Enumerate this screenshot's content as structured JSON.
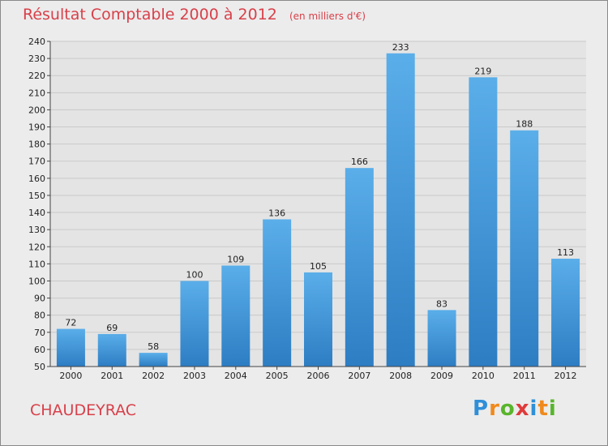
{
  "header": {
    "title": "Résultat Comptable 2000 à 2012",
    "units": "(en milliers d'€)"
  },
  "footer": {
    "commune": "CHAUDEYRAC",
    "brand_letters": [
      "P",
      "r",
      "o",
      "x",
      "i",
      "t",
      "i"
    ],
    "brand_colors": [
      "#2f8fd8",
      "#f08a1c",
      "#59b52b",
      "#e03a3a",
      "#2f8fd8",
      "#f08a1c",
      "#59b52b"
    ]
  },
  "chart_data": {
    "type": "bar",
    "title": "Résultat Comptable 2000 à 2012",
    "xlabel": "",
    "ylabel": "",
    "categories": [
      "2000",
      "2001",
      "2002",
      "2003",
      "2004",
      "2005",
      "2006",
      "2007",
      "2008",
      "2009",
      "2010",
      "2011",
      "2012"
    ],
    "values": [
      72,
      69,
      58,
      100,
      109,
      136,
      105,
      166,
      233,
      83,
      219,
      188,
      113
    ],
    "ylim": [
      50,
      240
    ],
    "ytick_step": 10,
    "grid": true,
    "bar_color_top": "#5aaee9",
    "bar_color_bottom": "#2d7dc3"
  }
}
